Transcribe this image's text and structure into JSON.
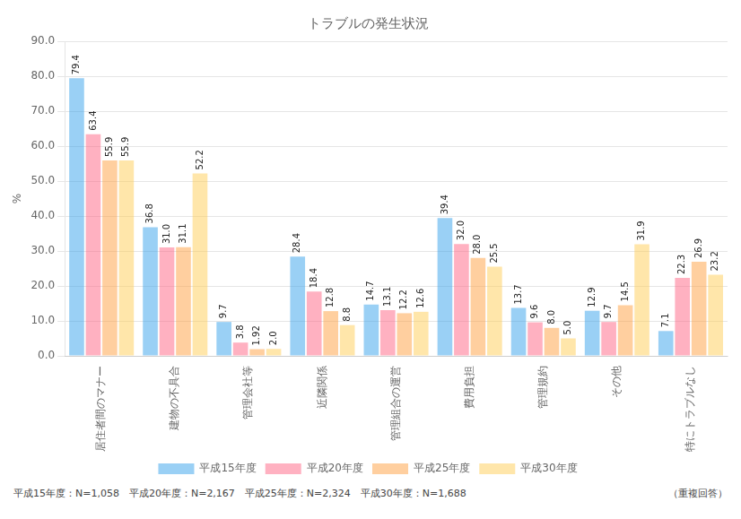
{
  "chart_data": {
    "type": "bar",
    "title": "トラブルの発生状況",
    "ylabel": "%",
    "categories": [
      "居住者間のマナー",
      "建物の不具合",
      "管理会社等",
      "近隣関係",
      "管理組合の運営",
      "費用負担",
      "管理規約",
      "その他",
      "特にトラブルなし"
    ],
    "series": [
      {
        "name": "平成15年度",
        "values": [
          79.4,
          36.8,
          9.7,
          28.4,
          14.7,
          39.4,
          13.7,
          12.9,
          7.1
        ],
        "value_labels": [
          "79.4",
          "36.8",
          "9.7",
          "28.4",
          "14.7",
          "39.4",
          "13.7",
          "12.9",
          "7.1"
        ]
      },
      {
        "name": "平成20年度",
        "values": [
          63.4,
          31.0,
          3.8,
          18.4,
          13.1,
          32.0,
          9.6,
          9.7,
          22.3
        ],
        "value_labels": [
          "63.4",
          "31.0",
          "3.8",
          "18.4",
          "13.1",
          "32.0",
          "9.6",
          "9.7",
          "22.3"
        ]
      },
      {
        "name": "平成25年度",
        "values": [
          55.9,
          31.1,
          1.92,
          12.8,
          12.2,
          28.0,
          8.0,
          14.5,
          26.9
        ],
        "value_labels": [
          "55.9",
          "31.1",
          "1.92",
          "12.8",
          "12.2",
          "28.0",
          "8.0",
          "14.5",
          "26.9"
        ]
      },
      {
        "name": "平成30年度",
        "values": [
          55.9,
          52.2,
          2.0,
          8.8,
          12.6,
          25.5,
          5.0,
          31.9,
          23.2
        ],
        "value_labels": [
          "55.9",
          "52.2",
          "2.0",
          "8.8",
          "12.6",
          "25.5",
          "5.0",
          "31.9",
          "23.2"
        ]
      }
    ],
    "ylim": [
      0,
      90
    ],
    "yticks": [
      {
        "value": 0,
        "label": "0.0"
      },
      {
        "value": 10,
        "label": "10.0"
      },
      {
        "value": 20,
        "label": "20.0"
      },
      {
        "value": 30,
        "label": "30.0"
      },
      {
        "value": 40,
        "label": "40.0"
      },
      {
        "value": 50,
        "label": "50.0"
      },
      {
        "value": 60,
        "label": "60.0"
      },
      {
        "value": 70,
        "label": "70.0"
      },
      {
        "value": 80,
        "label": "80.0"
      },
      {
        "value": 90,
        "label": "90.0"
      }
    ],
    "grid": true,
    "data_labels": true,
    "annotations": [
      "平成15年度：N=1,058　平成20年度：N=2,167　平成25年度：N=2,324　平成30年度：N=1,688",
      "（重複回答）"
    ]
  }
}
